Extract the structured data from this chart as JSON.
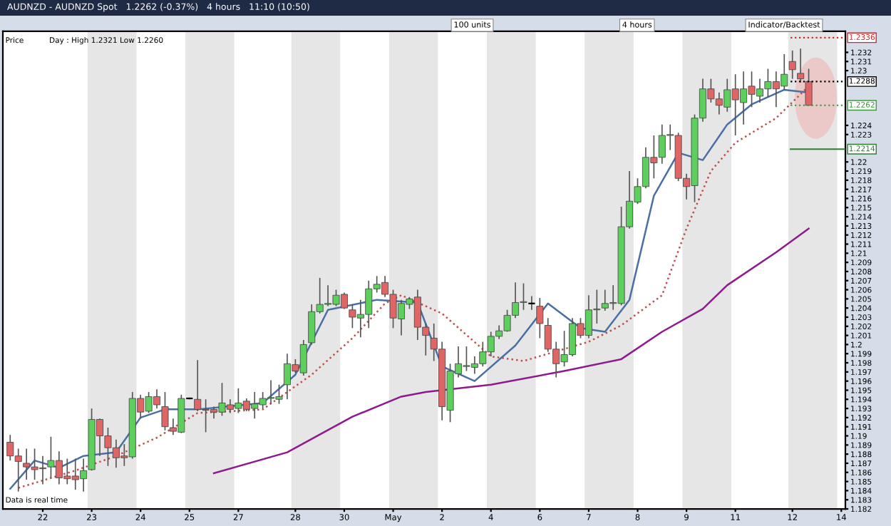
{
  "chart_data": {
    "type": "candlestick",
    "title": "AUDNZD - AUDNZD Spot   1.2262 (-0.37%)   4 hours   11:10 (10:50)",
    "annotations": [
      "Price",
      "Day : High 1.2321 Low 1.2260",
      "100 units",
      "4 hours",
      "Indicator/Backtest",
      "Data is real time"
    ],
    "categories": [
      null,
      null,
      null,
      null,
      "22",
      null,
      null,
      null,
      null,
      null,
      "23",
      null,
      null,
      null,
      null,
      null,
      "24",
      null,
      null,
      null,
      null,
      null,
      "25",
      null,
      null,
      null,
      null,
      null,
      "27",
      null,
      null,
      null,
      null,
      null,
      null,
      "28",
      null,
      null,
      null,
      null,
      null,
      "30",
      null,
      null,
      null,
      null,
      null,
      "May",
      null,
      null,
      null,
      null,
      null,
      "2",
      null,
      null,
      null,
      null,
      null,
      "4",
      null,
      null,
      null,
      null,
      null,
      "6",
      null,
      null,
      null,
      null,
      null,
      "7",
      null,
      null,
      null,
      null,
      null,
      "8",
      null,
      null,
      null,
      null,
      null,
      "9",
      null,
      null,
      null,
      null,
      null,
      "11",
      null,
      null,
      null,
      null,
      null,
      null,
      "12",
      null,
      null,
      null,
      null,
      null,
      "14"
    ],
    "ohlc": [
      [
        1.1893,
        1.1901,
        1.1873,
        1.1878
      ],
      [
        1.1878,
        1.1886,
        1.1839,
        1.1872
      ],
      [
        1.187,
        1.1886,
        1.1852,
        1.1866
      ],
      [
        1.1866,
        1.1886,
        1.1852,
        1.1863
      ],
      [
        1.1865,
        1.1878,
        1.1847,
        1.1864
      ],
      [
        1.1866,
        1.1899,
        1.1854,
        1.1873
      ],
      [
        1.1873,
        1.1883,
        1.1847,
        1.1854
      ],
      [
        1.1856,
        1.1875,
        1.1847,
        1.1853
      ],
      [
        1.1856,
        1.1875,
        1.1841,
        1.1852
      ],
      [
        1.1853,
        1.1875,
        1.1839,
        1.1862
      ],
      [
        1.1863,
        1.193,
        1.1862,
        1.1918
      ],
      [
        1.1918,
        1.1919,
        1.1878,
        1.19
      ],
      [
        1.19,
        1.1909,
        1.1867,
        1.1887
      ],
      [
        1.1887,
        1.1896,
        1.1865,
        1.1876
      ],
      [
        1.1878,
        1.1891,
        1.1867,
        1.1876
      ],
      [
        1.1877,
        1.1948,
        1.1875,
        1.1941
      ],
      [
        1.1941,
        1.1945,
        1.1919,
        1.1926
      ],
      [
        1.1927,
        1.1948,
        1.1925,
        1.1943
      ],
      [
        1.1943,
        1.1951,
        1.193,
        1.1934
      ],
      [
        1.1932,
        1.1948,
        1.1906,
        1.191
      ],
      [
        1.1909,
        1.1919,
        1.1901,
        1.1905
      ],
      [
        1.1904,
        1.1945,
        1.1903,
        1.1941
      ],
      [
        1.1941,
        1.1942,
        1.194,
        1.1941
      ],
      [
        1.194,
        1.1983,
        1.1927,
        1.1929
      ],
      [
        1.1929,
        1.194,
        1.1904,
        1.1928
      ],
      [
        1.1929,
        1.1932,
        1.1919,
        1.1926
      ],
      [
        1.1926,
        1.1958,
        1.1922,
        1.1936
      ],
      [
        1.1934,
        1.194,
        1.1925,
        1.1929
      ],
      [
        1.193,
        1.1952,
        1.1925,
        1.1936
      ],
      [
        1.1938,
        1.1941,
        1.1927,
        1.1929
      ],
      [
        1.193,
        1.1948,
        1.1919,
        1.1935
      ],
      [
        1.1934,
        1.1948,
        1.193,
        1.1941
      ],
      [
        1.1941,
        1.1961,
        1.1935,
        1.1942
      ],
      [
        1.194,
        1.1956,
        1.1935,
        1.1943
      ],
      [
        1.1956,
        1.199,
        1.194,
        1.1979
      ],
      [
        1.1978,
        1.1984,
        1.1969,
        1.1971
      ],
      [
        1.1969,
        1.2005,
        1.1966,
        1.2
      ],
      [
        1.2002,
        1.2044,
        1.2,
        1.2036
      ],
      [
        1.2036,
        1.2073,
        1.2034,
        1.2044
      ],
      [
        1.2044,
        1.2065,
        1.2042,
        1.2045
      ],
      [
        1.2044,
        1.206,
        1.2042,
        1.2054
      ],
      [
        1.2055,
        1.2057,
        1.2039,
        1.204
      ],
      [
        1.2038,
        1.2044,
        1.2018,
        1.203
      ],
      [
        1.2029,
        1.2049,
        1.2008,
        1.2033
      ],
      [
        1.2033,
        1.207,
        1.2018,
        1.2061
      ],
      [
        1.2061,
        1.2075,
        1.2057,
        1.2066
      ],
      [
        1.2068,
        1.2075,
        1.2052,
        1.2055
      ],
      [
        1.2055,
        1.206,
        1.2018,
        1.2029
      ],
      [
        1.2028,
        1.2049,
        1.201,
        1.2045
      ],
      [
        1.2044,
        1.2052,
        1.2039,
        1.205
      ],
      [
        1.2052,
        1.206,
        1.2005,
        1.2019
      ],
      [
        1.2019,
        1.2023,
        1.1988,
        1.201
      ],
      [
        1.2007,
        1.2023,
        1.1982,
        1.1995
      ],
      [
        1.1995,
        1.2003,
        1.1917,
        1.1932
      ],
      [
        1.1928,
        1.1979,
        1.1915,
        1.1971
      ],
      [
        1.1968,
        1.1998,
        1.1964,
        1.1979
      ],
      [
        1.1976,
        1.1998,
        1.1971,
        1.1977
      ],
      [
        1.1975,
        1.1987,
        1.1968,
        1.1979
      ],
      [
        1.1979,
        1.2003,
        1.1976,
        1.1992
      ],
      [
        1.1992,
        1.2014,
        1.1987,
        1.2009
      ],
      [
        1.2009,
        1.2021,
        1.2006,
        1.2015
      ],
      [
        1.2015,
        1.2038,
        1.2014,
        1.2032
      ],
      [
        1.2032,
        1.2068,
        1.2029,
        1.2046
      ],
      [
        1.2046,
        1.2067,
        1.2038,
        1.2047
      ],
      [
        1.2045,
        1.2053,
        1.2038,
        1.2045
      ],
      [
        1.2042,
        1.2051,
        1.2007,
        1.2023
      ],
      [
        1.2021,
        1.2029,
        1.1992,
        1.1995
      ],
      [
        1.1995,
        1.2003,
        1.1964,
        1.1979
      ],
      [
        1.1981,
        1.2015,
        1.1976,
        1.1989
      ],
      [
        1.1989,
        1.2029,
        1.1987,
        1.2023
      ],
      [
        1.2023,
        1.2029,
        1.2007,
        1.201
      ],
      [
        1.201,
        1.2054,
        1.2007,
        1.2038
      ],
      [
        1.2038,
        1.206,
        1.2023,
        1.2039
      ],
      [
        1.204,
        1.206,
        1.2037,
        1.2045
      ],
      [
        1.2045,
        1.2065,
        1.2038,
        1.2046
      ],
      [
        1.2045,
        1.2151,
        1.2043,
        1.2129
      ],
      [
        1.2129,
        1.219,
        1.2127,
        1.2157
      ],
      [
        1.2156,
        1.2182,
        1.2154,
        1.2173
      ],
      [
        1.2173,
        1.2216,
        1.2171,
        1.2205
      ],
      [
        1.2205,
        1.2229,
        1.2182,
        1.2199
      ],
      [
        1.2205,
        1.2241,
        1.2198,
        1.2229
      ],
      [
        1.2229,
        1.2241,
        1.2213,
        1.223
      ],
      [
        1.2229,
        1.2232,
        1.2179,
        1.2182
      ],
      [
        1.2182,
        1.2187,
        1.2159,
        1.2173
      ],
      [
        1.2174,
        1.2252,
        1.2156,
        1.2248
      ],
      [
        1.2248,
        1.2291,
        1.2244,
        1.228
      ],
      [
        1.228,
        1.2291,
        1.2265,
        1.2269
      ],
      [
        1.2269,
        1.2276,
        1.2252,
        1.2262
      ],
      [
        1.226,
        1.2291,
        1.2255,
        1.2279
      ],
      [
        1.228,
        1.2296,
        1.2229,
        1.2268
      ],
      [
        1.2265,
        1.2299,
        1.2241,
        1.228
      ],
      [
        1.2283,
        1.2299,
        1.226,
        1.2274
      ],
      [
        1.2272,
        1.2291,
        1.2265,
        1.228
      ],
      [
        1.228,
        1.2302,
        1.2271,
        1.2288
      ],
      [
        1.2288,
        1.2299,
        1.226,
        1.228
      ],
      [
        1.2283,
        1.2318,
        1.2279,
        1.2296
      ],
      [
        1.231,
        1.2322,
        1.2291,
        1.2301
      ],
      [
        1.2297,
        1.2324,
        1.2287,
        1.2291
      ],
      [
        1.2288,
        1.2302,
        1.2262,
        1.2262
      ],
      null,
      null,
      null,
      null
    ],
    "series": [
      {
        "type": "line",
        "color": "#8e1a8e",
        "line_style": "solid",
        "values": [
          null,
          null,
          null,
          null,
          null,
          null,
          null,
          null,
          null,
          null,
          null,
          null,
          null,
          null,
          null,
          null,
          null,
          null,
          null,
          null,
          null,
          null,
          null,
          null,
          null,
          1.1859,
          null,
          null,
          null,
          null,
          null,
          null,
          null,
          null,
          1.1882,
          null,
          null,
          null,
          null,
          null,
          null,
          null,
          1.1921,
          null,
          null,
          null,
          null,
          null,
          1.1943,
          null,
          null,
          1.1948,
          null,
          null,
          null,
          null,
          null,
          null,
          null,
          1.1956,
          null,
          null,
          null,
          null,
          null,
          null,
          null,
          null,
          1.1971,
          null,
          null,
          null,
          null,
          null,
          null,
          1.1984,
          null,
          null,
          null,
          null,
          1.2014,
          null,
          null,
          null,
          null,
          1.2039,
          null,
          null,
          1.2065,
          null,
          null,
          null,
          null,
          null,
          1.2101,
          null,
          null,
          null,
          1.2127,
          null,
          null,
          null,
          null
        ]
      },
      {
        "type": "line",
        "color": "#4a6fa5",
        "line_style": "solid",
        "values": [
          1.1842,
          null,
          null,
          1.1873,
          null,
          null,
          1.1865,
          null,
          null,
          1.1878,
          null,
          null,
          null,
          1.1882,
          null,
          null,
          1.192,
          null,
          null,
          1.1929,
          null,
          null,
          null,
          1.1929,
          null,
          null,
          null,
          null,
          null,
          null,
          null,
          1.1936,
          null,
          null,
          null,
          1.1967,
          null,
          null,
          null,
          1.2038,
          null,
          null,
          null,
          null,
          null,
          1.2049,
          null,
          null,
          null,
          null,
          1.2046,
          null,
          null,
          1.1976,
          null,
          null,
          null,
          1.196,
          null,
          null,
          null,
          null,
          1.1999,
          null,
          null,
          null,
          1.2045,
          null,
          null,
          null,
          1.2018,
          null,
          null,
          1.2014,
          null,
          null,
          1.2049,
          null,
          null,
          1.2163,
          null,
          null,
          1.221,
          null,
          null,
          1.2202,
          null,
          null,
          1.2241,
          null,
          null,
          1.2263,
          null,
          null,
          null,
          1.2279,
          null,
          null,
          1.2276,
          null,
          null,
          null,
          null
        ]
      },
      {
        "type": "line",
        "color": "#c0504d",
        "line_style": "dotted",
        "values": [
          null,
          1.1843,
          null,
          null,
          null,
          null,
          null,
          null,
          1.1862,
          null,
          null,
          null,
          null,
          1.1878,
          null,
          null,
          null,
          null,
          1.1898,
          null,
          null,
          null,
          null,
          1.1925,
          null,
          null,
          null,
          null,
          null,
          null,
          null,
          1.1929,
          null,
          null,
          null,
          null,
          null,
          1.1967,
          null,
          null,
          null,
          null,
          1.2007,
          null,
          null,
          null,
          1.2045,
          null,
          1.2054,
          null,
          null,
          null,
          null,
          1.2034,
          null,
          null,
          null,
          null,
          null,
          1.1987,
          null,
          null,
          null,
          1.1982,
          null,
          null,
          null,
          null,
          null,
          null,
          null,
          1.2003,
          null,
          null,
          null,
          1.2021,
          null,
          null,
          null,
          null,
          1.2054,
          null,
          null,
          1.2127,
          null,
          null,
          1.219,
          null,
          null,
          1.2221,
          null,
          null,
          null,
          null,
          1.2248,
          null,
          null,
          null,
          1.2283,
          null,
          null,
          null,
          null
        ]
      }
    ],
    "ylim": [
      1.182,
      1.2343
    ],
    "yticks": [
      1.182,
      1.183,
      1.184,
      1.185,
      1.186,
      1.187,
      1.188,
      1.189,
      1.19,
      1.191,
      1.192,
      1.193,
      1.194,
      1.195,
      1.196,
      1.197,
      1.198,
      1.199,
      1.2,
      1.201,
      1.202,
      1.203,
      1.204,
      1.205,
      1.206,
      1.207,
      1.208,
      1.209,
      1.21,
      1.211,
      1.212,
      1.213,
      1.214,
      1.215,
      1.216,
      1.217,
      1.218,
      1.219,
      1.22,
      1.223,
      1.224,
      1.23,
      1.231,
      1.232
    ],
    "bands": [
      {
        "axis": "x",
        "from": "23",
        "to": "24",
        "color": "#e6e6e6"
      },
      {
        "axis": "x",
        "from": "25",
        "to": "27",
        "color": "#e6e6e6"
      },
      {
        "axis": "x",
        "from": "28",
        "to": "30",
        "color": "#e6e6e6"
      },
      {
        "axis": "x",
        "from": "May",
        "to": "2",
        "color": "#e6e6e6"
      },
      {
        "axis": "x",
        "from": "4",
        "to": "6",
        "color": "#e6e6e6"
      },
      {
        "axis": "x",
        "from": "7",
        "to": "8",
        "color": "#e6e6e6"
      },
      {
        "axis": "x",
        "from": "9",
        "to": "11",
        "color": "#e6e6e6"
      },
      {
        "axis": "x",
        "from": "12",
        "to": "14",
        "color": "#e6e6e6"
      }
    ],
    "ref_lines": [
      {
        "axis": "y",
        "value": 1.2336,
        "label": "1.2336",
        "color": "#d62728",
        "line_style": "dotted"
      },
      {
        "axis": "y",
        "value": 1.2288,
        "label": "1.2288",
        "color": "#000000",
        "line_style": "dotted"
      },
      {
        "axis": "y",
        "value": 1.2262,
        "label": "1.2262",
        "color": "#3a9a3a",
        "line_style": "dotted"
      },
      {
        "axis": "y",
        "value": 1.2214,
        "label": "1.2214",
        "color": "#2e7d32",
        "line_style": "solid"
      }
    ],
    "grid": false,
    "legend": false
  }
}
